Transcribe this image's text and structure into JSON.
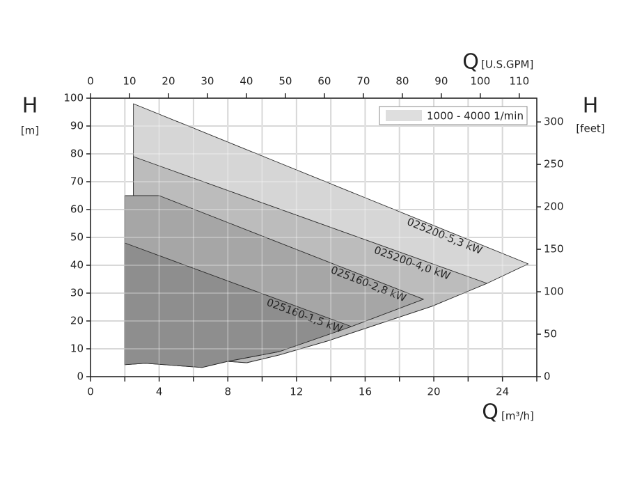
{
  "chart_data": {
    "type": "area",
    "x_label": "Q",
    "x_unit": "[m³/h]",
    "y_label": "H",
    "y_unit": "[m]",
    "x2_label": "Q",
    "x2_unit": "[U.S.GPM]",
    "y2_label": "H",
    "y2_unit": "[feet]",
    "xlim": [
      0,
      26
    ],
    "ylim": [
      0,
      100
    ],
    "xticks": [
      0,
      4,
      8,
      12,
      16,
      20,
      24
    ],
    "xminor": [
      2,
      6,
      10,
      14,
      18,
      22,
      26
    ],
    "yticks": [
      0,
      10,
      20,
      30,
      40,
      50,
      60,
      70,
      80,
      90,
      100
    ],
    "x2lim": [
      0,
      114.5
    ],
    "x2ticks": [
      0,
      10,
      20,
      30,
      40,
      50,
      60,
      70,
      80,
      90,
      100,
      110
    ],
    "y2lim": [
      0,
      328
    ],
    "y2ticks": [
      0,
      50,
      100,
      150,
      200,
      250,
      300
    ],
    "grid": true,
    "legend": {
      "label": "1000 - 4000 1/min",
      "color": "#dedede",
      "position": "upper right"
    },
    "series": [
      {
        "name": "025200-5,3 kW",
        "color": "#d6d6d6",
        "x": [
          2.5,
          25.5,
          23.1,
          19.9,
          13.8,
          11,
          9.1,
          8,
          2.5
        ],
        "values": [
          98,
          40.5,
          33.5,
          25.3,
          12.8,
          7.8,
          5,
          5.5,
          7
        ]
      },
      {
        "name": "025200-4,0 kW",
        "color": "#bcbcbc",
        "x": [
          2.5,
          23.1,
          19.9,
          13.8,
          11,
          9.1,
          8,
          2.5
        ],
        "values": [
          79,
          33.5,
          25.3,
          12.8,
          7.8,
          5,
          5.5,
          7
        ]
      },
      {
        "name": "025160-2,8 kW",
        "color": "#a6a6a6",
        "x": [
          2,
          4,
          19.4,
          15.2,
          11,
          8,
          6.5,
          3.2,
          2
        ],
        "values": [
          65,
          65,
          27.8,
          18,
          9,
          5.5,
          3.3,
          4.8,
          4.3
        ]
      },
      {
        "name": "025160-1,5 kW",
        "color": "#8e8e8e",
        "x": [
          2,
          15.2,
          11,
          8,
          6.5,
          3.2,
          2
        ],
        "values": [
          48,
          18,
          9,
          5.5,
          3.3,
          4.8,
          4.3
        ]
      }
    ]
  }
}
